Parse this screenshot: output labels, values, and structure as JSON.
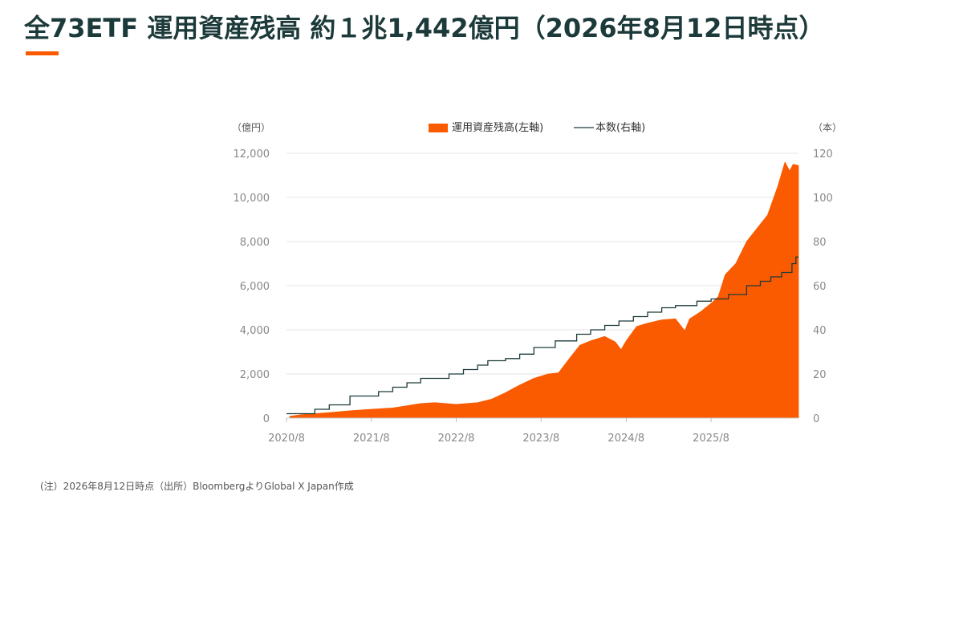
{
  "page": {
    "title": "全73ETF 運用資産残高 約１兆1,442億円（2026年8月12日時点）"
  },
  "colors": {
    "title": "#1d3a3a",
    "accent": "#fa5a00",
    "area": "#fa5a00",
    "line": "#1d3a3a",
    "grid": "#e6e6e6",
    "tick_text": "#888888"
  },
  "chart_data": {
    "type": "area",
    "left_axis_unit": "（億円）",
    "right_axis_unit": "（本）",
    "y_left_ticks": [
      "0",
      "2,000",
      "4,000",
      "6,000",
      "8,000",
      "10,000",
      "12,000"
    ],
    "y_right_ticks": [
      "0",
      "20",
      "40",
      "60",
      "80",
      "100",
      "120"
    ],
    "x_ticks": [
      "2020/8",
      "2021/8",
      "2022/8",
      "2023/8",
      "2024/8",
      "2025/8"
    ],
    "ylim_left": [
      0,
      12000
    ],
    "ylim_right": [
      0,
      120
    ],
    "x_range": [
      "2020-08-01",
      "2026-08-12"
    ],
    "grid": true,
    "legend_position": "top-center",
    "series": [
      {
        "name": "運用資産残高(左軸)",
        "kind": "area",
        "axis": "left",
        "points": [
          [
            "2020-08-15",
            80
          ],
          [
            "2020-10-01",
            150
          ],
          [
            "2020-12-01",
            200
          ],
          [
            "2021-02-01",
            250
          ],
          [
            "2021-05-01",
            330
          ],
          [
            "2021-08-01",
            400
          ],
          [
            "2021-11-01",
            460
          ],
          [
            "2022-01-01",
            560
          ],
          [
            "2022-03-01",
            660
          ],
          [
            "2022-05-01",
            700
          ],
          [
            "2022-08-01",
            620
          ],
          [
            "2022-11-01",
            700
          ],
          [
            "2023-01-01",
            860
          ],
          [
            "2023-03-01",
            1150
          ],
          [
            "2023-05-01",
            1500
          ],
          [
            "2023-07-01",
            1800
          ],
          [
            "2023-09-01",
            2000
          ],
          [
            "2023-10-15",
            2050
          ],
          [
            "2023-12-01",
            2700
          ],
          [
            "2024-01-15",
            3300
          ],
          [
            "2024-03-01",
            3500
          ],
          [
            "2024-05-01",
            3700
          ],
          [
            "2024-06-15",
            3450
          ],
          [
            "2024-07-10",
            3100
          ],
          [
            "2024-08-01",
            3500
          ],
          [
            "2024-09-15",
            4150
          ],
          [
            "2024-11-01",
            4300
          ],
          [
            "2025-01-01",
            4450
          ],
          [
            "2025-03-01",
            4500
          ],
          [
            "2025-04-10",
            3950
          ],
          [
            "2025-05-01",
            4500
          ],
          [
            "2025-06-15",
            4800
          ],
          [
            "2025-08-01",
            5200
          ],
          [
            "2025-09-01",
            5500
          ],
          [
            "2025-10-01",
            6500
          ],
          [
            "2025-11-15",
            7000
          ],
          [
            "2026-01-01",
            8000
          ],
          [
            "2026-02-15",
            8600
          ],
          [
            "2026-04-01",
            9200
          ],
          [
            "2026-05-15",
            10500
          ],
          [
            "2026-06-15",
            11600
          ],
          [
            "2026-07-05",
            11200
          ],
          [
            "2026-07-20",
            11500
          ],
          [
            "2026-08-12",
            11442
          ]
        ]
      },
      {
        "name": "本数(右軸)",
        "kind": "step",
        "axis": "right",
        "points": [
          [
            "2020-08-01",
            2
          ],
          [
            "2020-12-01",
            4
          ],
          [
            "2021-02-01",
            6
          ],
          [
            "2021-05-01",
            10
          ],
          [
            "2021-09-01",
            12
          ],
          [
            "2021-11-01",
            14
          ],
          [
            "2022-01-01",
            16
          ],
          [
            "2022-03-01",
            18
          ],
          [
            "2022-07-01",
            20
          ],
          [
            "2022-09-01",
            22
          ],
          [
            "2022-11-01",
            24
          ],
          [
            "2022-12-15",
            26
          ],
          [
            "2023-03-01",
            27
          ],
          [
            "2023-05-01",
            29
          ],
          [
            "2023-07-01",
            32
          ],
          [
            "2023-10-01",
            35
          ],
          [
            "2024-01-01",
            38
          ],
          [
            "2024-03-01",
            40
          ],
          [
            "2024-05-01",
            42
          ],
          [
            "2024-07-01",
            44
          ],
          [
            "2024-09-01",
            46
          ],
          [
            "2024-11-01",
            48
          ],
          [
            "2025-01-01",
            50
          ],
          [
            "2025-03-01",
            51
          ],
          [
            "2025-06-01",
            53
          ],
          [
            "2025-08-01",
            54
          ],
          [
            "2025-10-15",
            56
          ],
          [
            "2026-01-01",
            60
          ],
          [
            "2026-03-01",
            62
          ],
          [
            "2026-04-15",
            64
          ],
          [
            "2026-06-01",
            66
          ],
          [
            "2026-07-15",
            70
          ],
          [
            "2026-08-01",
            73
          ],
          [
            "2026-08-12",
            73
          ]
        ]
      }
    ]
  },
  "note": "(注）2026年8月12日時点（出所）BloombergよりGlobal X Japan作成"
}
